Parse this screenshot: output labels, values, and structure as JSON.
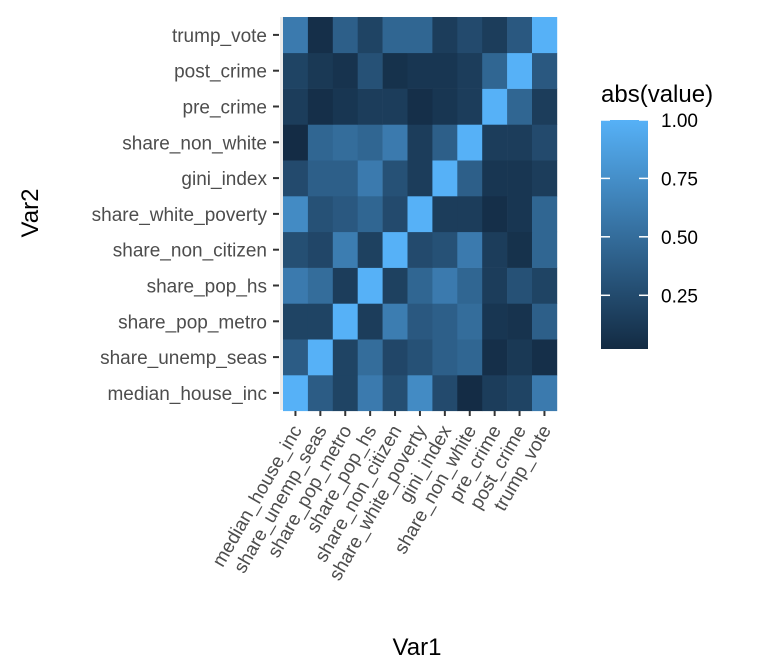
{
  "chart_data": {
    "type": "heatmap",
    "xlabel": "Var1",
    "ylabel": "Var2",
    "x_categories": [
      "median_house_inc",
      "share_unemp_seas",
      "share_pop_metro",
      "share_pop_hs",
      "share_non_citizen",
      "share_white_poverty",
      "gini_index",
      "share_non_white",
      "pre_crime",
      "post_crime",
      "trump_vote"
    ],
    "y_categories": [
      "median_house_inc",
      "share_unemp_seas",
      "share_pop_metro",
      "share_pop_hs",
      "share_non_citizen",
      "share_white_poverty",
      "gini_index",
      "share_non_white",
      "pre_crime",
      "post_crime",
      "trump_vote"
    ],
    "values": [
      [
        1.0,
        0.38,
        0.2,
        0.6,
        0.28,
        0.72,
        0.25,
        0.03,
        0.15,
        0.2,
        0.6
      ],
      [
        0.38,
        1.0,
        0.2,
        0.5,
        0.22,
        0.3,
        0.4,
        0.45,
        0.05,
        0.12,
        0.05
      ],
      [
        0.2,
        0.2,
        1.0,
        0.15,
        0.62,
        0.35,
        0.4,
        0.5,
        0.1,
        0.08,
        0.4
      ],
      [
        0.6,
        0.5,
        0.15,
        1.0,
        0.18,
        0.45,
        0.6,
        0.45,
        0.15,
        0.3,
        0.2
      ],
      [
        0.28,
        0.22,
        0.62,
        0.18,
        1.0,
        0.25,
        0.3,
        0.6,
        0.15,
        0.07,
        0.45
      ],
      [
        0.72,
        0.3,
        0.35,
        0.45,
        0.25,
        1.0,
        0.15,
        0.15,
        0.05,
        0.1,
        0.45
      ],
      [
        0.25,
        0.4,
        0.4,
        0.6,
        0.3,
        0.15,
        1.0,
        0.4,
        0.1,
        0.1,
        0.15
      ],
      [
        0.03,
        0.45,
        0.5,
        0.45,
        0.6,
        0.15,
        0.4,
        1.0,
        0.15,
        0.15,
        0.25
      ],
      [
        0.15,
        0.05,
        0.1,
        0.15,
        0.15,
        0.05,
        0.1,
        0.15,
        1.0,
        0.45,
        0.15
      ],
      [
        0.2,
        0.12,
        0.08,
        0.3,
        0.07,
        0.1,
        0.1,
        0.15,
        0.45,
        1.0,
        0.35
      ],
      [
        0.6,
        0.05,
        0.4,
        0.2,
        0.45,
        0.45,
        0.15,
        0.25,
        0.15,
        0.35,
        1.0
      ]
    ],
    "color_low": "#132b43",
    "color_high": "#56b1f7",
    "panel_background": "#ebebeb",
    "legend": {
      "title": "abs(value)",
      "breaks": [
        1.0,
        0.75,
        0.5,
        0.25
      ],
      "labels": [
        "1.00",
        "0.75",
        "0.50",
        "0.25"
      ],
      "range": [
        0.02,
        1.0
      ],
      "position": "right"
    }
  }
}
